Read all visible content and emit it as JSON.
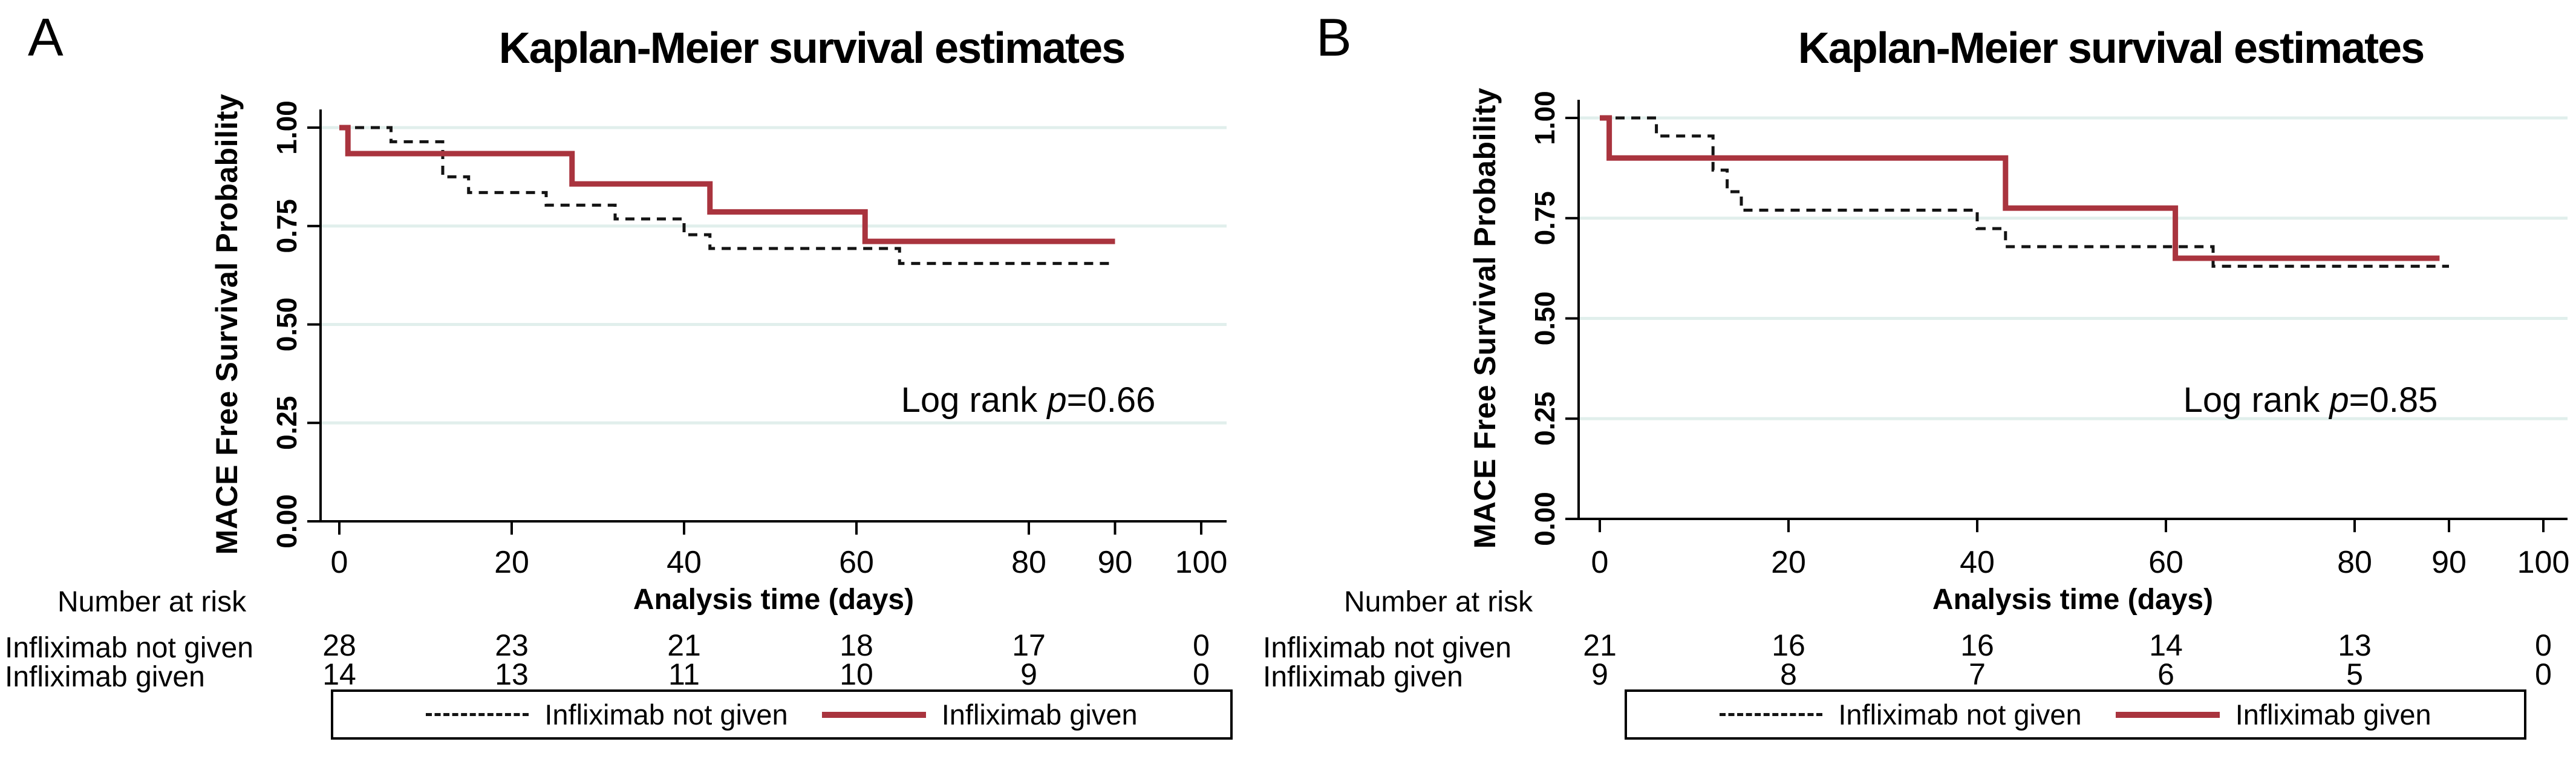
{
  "page": {
    "background": "#ffffff"
  },
  "colors": {
    "given_line": "#A9343E",
    "not_given_line": "#141414",
    "gridline": "#E1EFEC",
    "axis": "#000000",
    "legend_border": "#000000",
    "text": "#000000"
  },
  "chart_data": [
    {
      "type": "line",
      "subtype": "kaplan_meier_step",
      "panel_label": "A",
      "title": "Kaplan-Meier survival estimates",
      "xlabel": "Analysis time (days)",
      "ylabel": "MACE Free Survival Probability",
      "xlim": [
        0,
        100
      ],
      "ylim": [
        0,
        1.0
      ],
      "xticks": [
        0,
        20,
        40,
        60,
        80,
        90,
        100
      ],
      "yticks": [
        "0.00",
        "0.25",
        "0.50",
        "0.75",
        "1.00"
      ],
      "ytick_values": [
        0,
        0.25,
        0.5,
        0.75,
        1.0
      ],
      "grid": "horizontal",
      "gridline_values": [
        0.25,
        0.5,
        0.75,
        1.0
      ],
      "annotation": {
        "text": "Log rank p=0.66",
        "parts": [
          "Log rank ",
          "p",
          "=0.66"
        ]
      },
      "legend": {
        "position": "bottom-outside",
        "entries": [
          {
            "label": "Infliximab not given",
            "style": "dashed",
            "color": "#141414"
          },
          {
            "label": "Infliximab given",
            "style": "solid",
            "color": "#A9343E"
          }
        ]
      },
      "series": [
        {
          "name": "Infliximab not given",
          "style": "dashed",
          "color": "#141414",
          "step_points": [
            [
              0,
              1.0
            ],
            [
              6,
              0.964
            ],
            [
              12,
              0.875
            ],
            [
              15,
              0.835
            ],
            [
              24,
              0.803
            ],
            [
              32,
              0.768
            ],
            [
              40,
              0.728
            ],
            [
              43,
              0.693
            ],
            [
              65,
              0.655
            ],
            [
              90,
              0.655
            ]
          ]
        },
        {
          "name": "Infliximab given",
          "style": "solid",
          "color": "#A9343E",
          "step_points": [
            [
              0,
              1.0
            ],
            [
              1,
              0.934
            ],
            [
              27,
              0.857
            ],
            [
              43,
              0.786
            ],
            [
              61,
              0.711
            ],
            [
              90,
              0.711
            ]
          ]
        }
      ],
      "number_at_risk": {
        "heading": "Number at risk",
        "times": [
          0,
          20,
          40,
          60,
          80,
          100
        ],
        "rows": [
          {
            "label": "Infliximab not given",
            "counts": [
              28,
              23,
              21,
              18,
              17,
              0
            ]
          },
          {
            "label": "Infliximab given",
            "counts": [
              14,
              13,
              11,
              10,
              9,
              0
            ]
          }
        ]
      }
    },
    {
      "type": "line",
      "subtype": "kaplan_meier_step",
      "panel_label": "B",
      "title": "Kaplan-Meier survival estimates",
      "xlabel": "Analysis time (days)",
      "ylabel": "MACE Free Survival Probability",
      "xlim": [
        0,
        100
      ],
      "ylim": [
        0,
        1.0
      ],
      "xticks": [
        0,
        20,
        40,
        60,
        80,
        90,
        100
      ],
      "yticks": [
        "0.00",
        "0.25",
        "0.50",
        "0.75",
        "1.00"
      ],
      "ytick_values": [
        0,
        0.25,
        0.5,
        0.75,
        1.0
      ],
      "grid": "horizontal",
      "gridline_values": [
        0.25,
        0.5,
        0.75,
        1.0
      ],
      "annotation": {
        "text": "Log rank p=0.85",
        "parts": [
          "Log rank ",
          "p",
          "=0.85"
        ]
      },
      "legend": {
        "position": "bottom-outside",
        "entries": [
          {
            "label": "Infliximab not given",
            "style": "dashed",
            "color": "#141414"
          },
          {
            "label": "Infliximab given",
            "style": "solid",
            "color": "#A9343E"
          }
        ]
      },
      "series": [
        {
          "name": "Infliximab not given",
          "style": "dashed",
          "color": "#141414",
          "step_points": [
            [
              0,
              1.0
            ],
            [
              6,
              0.955
            ],
            [
              12,
              0.87
            ],
            [
              13.5,
              0.816
            ],
            [
              15,
              0.77
            ],
            [
              40,
              0.724
            ],
            [
              43,
              0.679
            ],
            [
              65,
              0.63
            ],
            [
              90,
              0.63
            ]
          ]
        },
        {
          "name": "Infliximab given",
          "style": "solid",
          "color": "#A9343E",
          "step_points": [
            [
              0,
              1.0
            ],
            [
              1,
              0.9
            ],
            [
              43,
              0.775
            ],
            [
              61,
              0.65
            ],
            [
              89,
              0.65
            ]
          ]
        }
      ],
      "number_at_risk": {
        "heading": "Number at risk",
        "times": [
          0,
          20,
          40,
          60,
          80,
          100
        ],
        "rows": [
          {
            "label": "Infliximab not given",
            "counts": [
              21,
              16,
              16,
              14,
              13,
              0
            ]
          },
          {
            "label": "Infliximab given",
            "counts": [
              9,
              8,
              7,
              6,
              5,
              0
            ]
          }
        ]
      }
    }
  ]
}
